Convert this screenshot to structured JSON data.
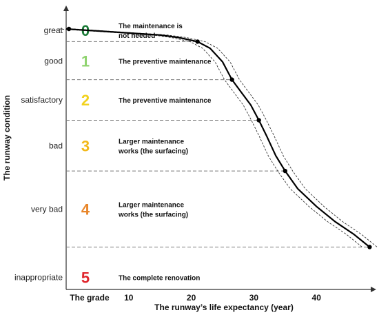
{
  "chart_data": {
    "type": "line",
    "title": "",
    "xlabel": "The runway’s life expectancy (year)",
    "ylabel": "The runway condition",
    "x_ticks": [
      10,
      20,
      30,
      40
    ],
    "x_first_tick_label": "The grade",
    "xlim": [
      0,
      50
    ],
    "grid": false,
    "levels": [
      {
        "condition": "great",
        "grade": "0",
        "grade_color": "#1a7a36",
        "description_lines": [
          "The maintenance is",
          "not needed"
        ]
      },
      {
        "condition": "good",
        "grade": "1",
        "grade_color": "#8fd36f",
        "description_lines": [
          "The preventive maintenance"
        ]
      },
      {
        "condition": "satisfactory",
        "grade": "2",
        "grade_color": "#f2d21e",
        "description_lines": [
          "The preventive maintenance"
        ]
      },
      {
        "condition": "bad",
        "grade": "3",
        "grade_color": "#f2b81a",
        "description_lines": [
          "Larger maintenance",
          "works (the surfacing)"
        ]
      },
      {
        "condition": "very bad",
        "grade": "4",
        "grade_color": "#e8862a",
        "description_lines": [
          "Larger maintenance",
          "works (the surfacing)"
        ]
      },
      {
        "condition": "inappropriate",
        "grade": "5",
        "grade_color": "#e0262d",
        "description_lines": [
          "The complete renovation"
        ]
      }
    ],
    "boundaries": [
      {
        "condition_value": 4.75,
        "x": 21
      },
      {
        "condition_value": 4.0,
        "x": 26.5
      },
      {
        "condition_value": 3.2,
        "x": 30.8
      },
      {
        "condition_value": 2.2,
        "x": 35
      },
      {
        "condition_value": 0.7,
        "x": 48.5
      }
    ],
    "series": [
      {
        "x": [
          0,
          5,
          10,
          15,
          18,
          21,
          23,
          25,
          26.5,
          28,
          29.5,
          30.8,
          32,
          33.5,
          35,
          37,
          40,
          43,
          46,
          48.5
        ],
        "y": [
          5.0,
          4.96,
          4.92,
          4.88,
          4.83,
          4.75,
          4.62,
          4.35,
          4.0,
          3.75,
          3.5,
          3.2,
          2.9,
          2.5,
          2.2,
          1.85,
          1.5,
          1.2,
          0.95,
          0.7
        ]
      }
    ],
    "band_offset_x": 1.2
  }
}
